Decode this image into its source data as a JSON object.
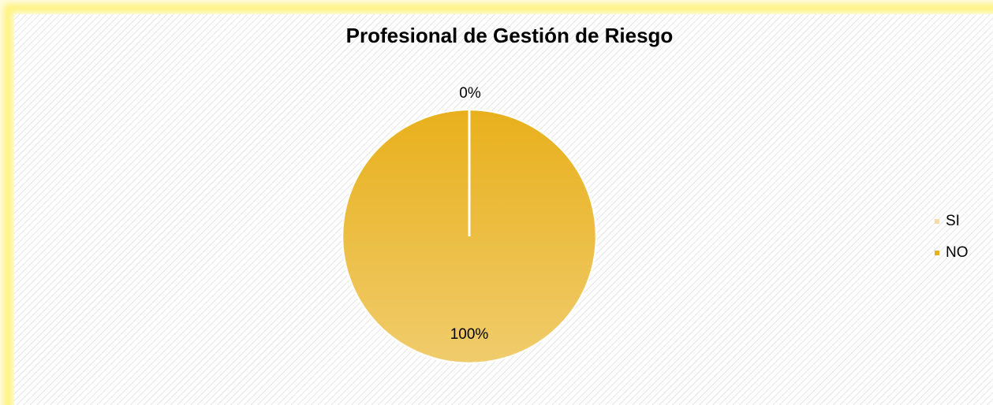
{
  "chart_data": {
    "type": "pie",
    "title": "Profesional de Gestión de Riesgo",
    "categories": [
      "SI",
      "NO"
    ],
    "values": [
      0,
      100
    ],
    "value_labels": [
      "0%",
      "100%"
    ],
    "colors": [
      "#f9d9a6",
      "#e8b01c"
    ],
    "legend": "right"
  }
}
